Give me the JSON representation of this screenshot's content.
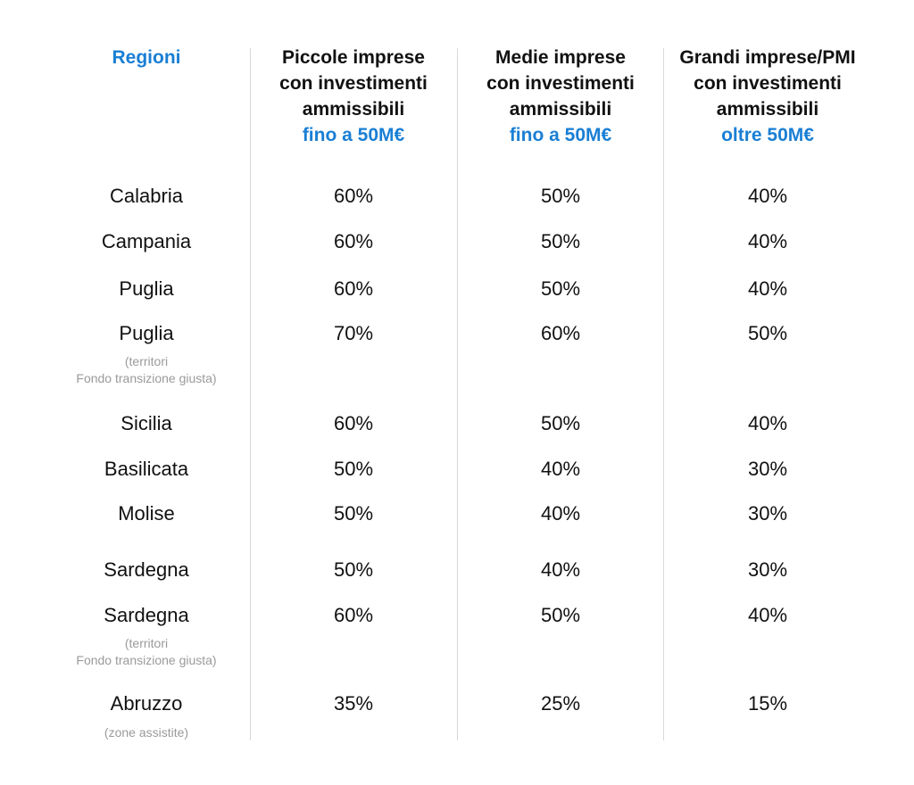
{
  "headers": {
    "region": "Regioni",
    "small": {
      "line1": "Piccole imprese",
      "line2": "con investimenti",
      "line3": "ammissibili",
      "accent": "fino a 50M€"
    },
    "medium": {
      "line1": "Medie imprese",
      "line2": "con investimenti",
      "line3": "ammissibili",
      "accent": "fino a 50M€"
    },
    "large": {
      "line1": "Grandi imprese/PMI",
      "line2": "con investimenti",
      "line3": "ammissibili",
      "accent": "oltre 50M€"
    }
  },
  "rows": [
    {
      "region": "Calabria",
      "small": "60%",
      "medium": "50%",
      "large": "40%"
    },
    {
      "region": "Campania",
      "small": "60%",
      "medium": "50%",
      "large": "40%"
    },
    {
      "region": "Puglia",
      "small": "60%",
      "medium": "50%",
      "large": "40%"
    },
    {
      "region": "Puglia",
      "note1": "(territori",
      "note2": "Fondo transizione giusta)",
      "small": "70%",
      "medium": "60%",
      "large": "50%"
    },
    {
      "region": "Sicilia",
      "small": "60%",
      "medium": "50%",
      "large": "40%"
    },
    {
      "region": "Basilicata",
      "small": "50%",
      "medium": "40%",
      "large": "30%"
    },
    {
      "region": "Molise",
      "small": "50%",
      "medium": "40%",
      "large": "30%"
    },
    {
      "region": "Sardegna",
      "small": "50%",
      "medium": "40%",
      "large": "30%"
    },
    {
      "region": "Sardegna",
      "note1": "(territori",
      "note2": "Fondo transizione giusta)",
      "small": "60%",
      "medium": "50%",
      "large": "40%"
    },
    {
      "region": "Abruzzo",
      "note1": "(zone assistite)",
      "small": "35%",
      "medium": "25%",
      "large": "15%"
    }
  ],
  "colors": {
    "accent": "#1a7fd4",
    "text": "#111111",
    "note": "#9a9a9a",
    "divider": "#d8d8d8"
  }
}
